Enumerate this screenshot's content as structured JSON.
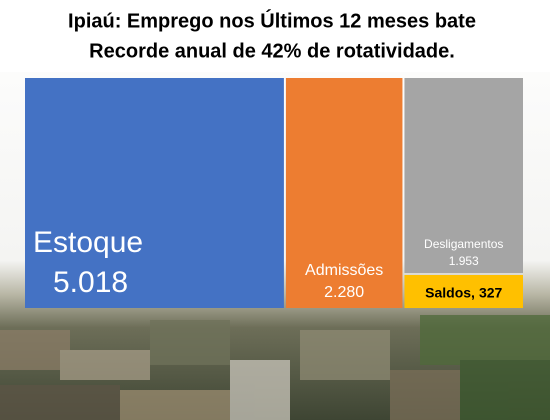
{
  "chart_data": {
    "type": "treemap",
    "title_lines": [
      "Ipiaú: Emprego nos Últimos 12 meses bate",
      "Recorde anual de 42% de rotatividade."
    ],
    "categories": [
      "Estoque",
      "Admissões",
      "Desligamentos",
      "Saldos,"
    ],
    "values": [
      5018,
      2280,
      1953,
      327
    ],
    "value_labels": [
      "5.018",
      "2.280",
      "1.953",
      "327"
    ],
    "colors": [
      "#4472c4",
      "#ed7d31",
      "#a5a5a5",
      "#ffc000"
    ]
  }
}
